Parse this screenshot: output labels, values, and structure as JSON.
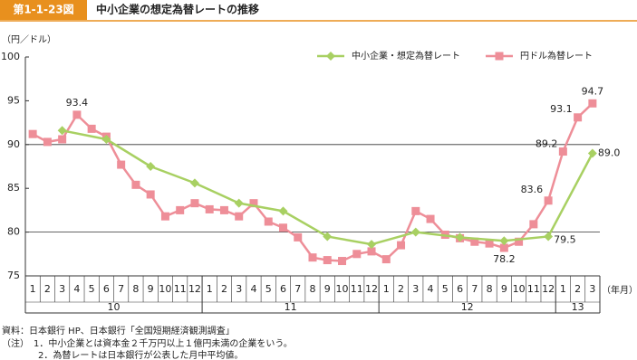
{
  "chart_data": {
    "type": "line",
    "figure_label": "第1-1-23図",
    "title": "中小企業の想定為替レートの推移",
    "y_unit": "（円／ドル）",
    "x_unit": "（年月）",
    "categories": [
      "1",
      "2",
      "3",
      "4",
      "5",
      "6",
      "7",
      "8",
      "9",
      "10",
      "11",
      "12",
      "1",
      "2",
      "3",
      "4",
      "5",
      "6",
      "7",
      "8",
      "9",
      "10",
      "11",
      "12",
      "1",
      "2",
      "3",
      "4",
      "5",
      "6",
      "7",
      "8",
      "9",
      "10",
      "11",
      "12",
      "1",
      "2",
      "3"
    ],
    "x_group_labels": [
      "10",
      "11",
      "12",
      "13"
    ],
    "ylim": [
      75,
      100
    ],
    "yticks": [
      75,
      80,
      85,
      90,
      95,
      100
    ],
    "grid_at": [
      80,
      90
    ],
    "legend": "top-right",
    "series": [
      {
        "name": "中小企業・想定為替レート",
        "color": "#a8d062",
        "marker": "diamond",
        "connect_gaps": true,
        "values": [
          null,
          null,
          91.6,
          null,
          null,
          90.6,
          null,
          null,
          87.5,
          null,
          null,
          85.6,
          null,
          null,
          83.3,
          null,
          null,
          82.4,
          null,
          null,
          79.5,
          null,
          null,
          78.6,
          null,
          null,
          80.0,
          null,
          null,
          79.4,
          null,
          null,
          79.0,
          null,
          null,
          79.5,
          null,
          null,
          89.0
        ],
        "value_labels": [
          null,
          null,
          null,
          null,
          null,
          null,
          null,
          null,
          null,
          null,
          null,
          null,
          null,
          null,
          null,
          null,
          null,
          null,
          null,
          null,
          null,
          null,
          null,
          null,
          null,
          null,
          null,
          null,
          null,
          null,
          null,
          null,
          null,
          null,
          null,
          "79.5",
          null,
          null,
          "89.0"
        ]
      },
      {
        "name": "円ドル為替レート",
        "color": "#ee8e98",
        "marker": "square",
        "values": [
          91.2,
          90.3,
          90.6,
          93.4,
          91.8,
          90.9,
          87.7,
          85.4,
          84.3,
          81.8,
          82.5,
          83.3,
          82.6,
          82.5,
          81.8,
          83.3,
          81.2,
          80.5,
          79.4,
          77.1,
          76.8,
          76.7,
          77.5,
          77.8,
          76.9,
          78.5,
          82.4,
          81.5,
          79.7,
          79.3,
          78.9,
          78.7,
          78.2,
          78.9,
          80.9,
          83.6,
          89.2,
          93.1,
          94.7
        ],
        "value_labels": [
          null,
          null,
          null,
          "93.4",
          null,
          null,
          null,
          null,
          null,
          null,
          null,
          null,
          null,
          null,
          null,
          null,
          null,
          null,
          null,
          null,
          null,
          null,
          null,
          null,
          null,
          null,
          null,
          null,
          null,
          null,
          null,
          null,
          "78.2",
          null,
          null,
          "83.6",
          "89.2",
          "93.1",
          "94.7"
        ]
      }
    ],
    "notes": [
      "資料：日本銀行 HP、日本銀行「全国短期経済観測調査」",
      "（注）　1．中小企業とは資本金２千万円以上１億円未満の企業をいう。",
      "　　　　2．為替レートは日本銀行が公表した月中平均値。"
    ]
  }
}
